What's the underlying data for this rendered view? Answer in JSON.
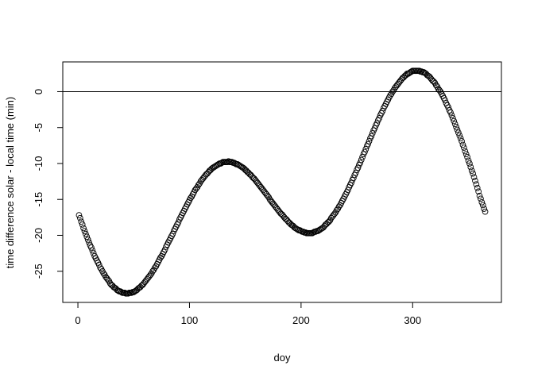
{
  "chart_data": {
    "type": "scatter",
    "x_label": "doy",
    "y_label": "time difference solar - local time (min)",
    "xlim": [
      -13.56,
      379.56
    ],
    "ylim": [
      -29.34,
      4.14
    ],
    "xticks": [
      0,
      100,
      200,
      300
    ],
    "yticks": [
      -25,
      -20,
      -15,
      -10,
      -5,
      0
    ],
    "hlines": [
      0
    ],
    "color": "#000000",
    "x": [
      1,
      2,
      3,
      4,
      5,
      6,
      7,
      8,
      9,
      10,
      11,
      12,
      13,
      14,
      15,
      16,
      17,
      18,
      19,
      20,
      21,
      22,
      23,
      24,
      25,
      26,
      27,
      28,
      29,
      30,
      31,
      32,
      33,
      34,
      35,
      36,
      37,
      38,
      39,
      40,
      41,
      42,
      43,
      44,
      45,
      46,
      47,
      48,
      49,
      50,
      51,
      52,
      53,
      54,
      55,
      56,
      57,
      58,
      59,
      60,
      61,
      62,
      63,
      64,
      65,
      66,
      67,
      68,
      69,
      70,
      71,
      72,
      73,
      74,
      75,
      76,
      77,
      78,
      79,
      80,
      81,
      82,
      83,
      84,
      85,
      86,
      87,
      88,
      89,
      90,
      91,
      92,
      93,
      94,
      95,
      96,
      97,
      98,
      99,
      100,
      101,
      102,
      103,
      104,
      105,
      106,
      107,
      108,
      109,
      110,
      111,
      112,
      113,
      114,
      115,
      116,
      117,
      118,
      119,
      120,
      121,
      122,
      123,
      124,
      125,
      126,
      127,
      128,
      129,
      130,
      131,
      132,
      133,
      134,
      135,
      136,
      137,
      138,
      139,
      140,
      141,
      142,
      143,
      144,
      145,
      146,
      147,
      148,
      149,
      150,
      151,
      152,
      153,
      154,
      155,
      156,
      157,
      158,
      159,
      160,
      161,
      162,
      163,
      164,
      165,
      166,
      167,
      168,
      169,
      170,
      171,
      172,
      173,
      174,
      175,
      176,
      177,
      178,
      179,
      180,
      181,
      182,
      183,
      184,
      185,
      186,
      187,
      188,
      189,
      190,
      191,
      192,
      193,
      194,
      195,
      196,
      197,
      198,
      199,
      200,
      201,
      202,
      203,
      204,
      205,
      206,
      207,
      208,
      209,
      210,
      211,
      212,
      213,
      214,
      215,
      216,
      217,
      218,
      219,
      220,
      221,
      222,
      223,
      224,
      225,
      226,
      227,
      228,
      229,
      230,
      231,
      232,
      233,
      234,
      235,
      236,
      237,
      238,
      239,
      240,
      241,
      242,
      243,
      244,
      245,
      246,
      247,
      248,
      249,
      250,
      251,
      252,
      253,
      254,
      255,
      256,
      257,
      258,
      259,
      260,
      261,
      262,
      263,
      264,
      265,
      266,
      267,
      268,
      269,
      270,
      271,
      272,
      273,
      274,
      275,
      276,
      277,
      278,
      279,
      280,
      281,
      282,
      283,
      284,
      285,
      286,
      287,
      288,
      289,
      290,
      291,
      292,
      293,
      294,
      295,
      296,
      297,
      298,
      299,
      300,
      301,
      302,
      303,
      304,
      305,
      306,
      307,
      308,
      309,
      310,
      311,
      312,
      313,
      314,
      315,
      316,
      317,
      318,
      319,
      320,
      321,
      322,
      323,
      324,
      325,
      326,
      327,
      328,
      329,
      330,
      331,
      332,
      333,
      334,
      335,
      336,
      337,
      338,
      339,
      340,
      341,
      342,
      343,
      344,
      345,
      346,
      347,
      348,
      349,
      350,
      351,
      352,
      353,
      354,
      355,
      356,
      357,
      358,
      359,
      360,
      361,
      362,
      363,
      364,
      365
    ],
    "values": [
      -17.2,
      -17.6,
      -18.1,
      -18.5,
      -19.0,
      -19.4,
      -19.8,
      -20.2,
      -20.6,
      -21.0,
      -21.4,
      -21.7,
      -22.1,
      -22.5,
      -22.9,
      -23.2,
      -23.5,
      -23.8,
      -24.1,
      -24.5,
      -24.7,
      -25.0,
      -25.3,
      -25.5,
      -25.8,
      -26.0,
      -26.2,
      -26.4,
      -26.7,
      -26.9,
      -27.0,
      -27.2,
      -27.3,
      -27.4,
      -27.6,
      -27.7,
      -27.8,
      -27.8,
      -27.9,
      -28.0,
      -28.0,
      -28.0,
      -28.1,
      -28.1,
      -28.1,
      -28.0,
      -28.0,
      -28.0,
      -27.9,
      -27.9,
      -27.8,
      -27.7,
      -27.6,
      -27.4,
      -27.3,
      -27.2,
      -27.0,
      -26.9,
      -26.7,
      -26.5,
      -26.3,
      -26.1,
      -25.9,
      -25.7,
      -25.5,
      -25.3,
      -25.0,
      -24.8,
      -24.5,
      -24.3,
      -24.0,
      -23.7,
      -23.4,
      -23.1,
      -22.9,
      -22.6,
      -22.3,
      -22.0,
      -21.6,
      -21.3,
      -21.0,
      -20.7,
      -20.4,
      -20.1,
      -19.8,
      -19.4,
      -19.1,
      -18.8,
      -18.5,
      -18.2,
      -17.8,
      -17.5,
      -17.2,
      -16.9,
      -16.6,
      -16.3,
      -16.0,
      -15.7,
      -15.4,
      -15.1,
      -14.8,
      -14.6,
      -14.3,
      -14.0,
      -13.7,
      -13.5,
      -13.3,
      -13.0,
      -12.8,
      -12.5,
      -12.3,
      -12.1,
      -11.9,
      -11.7,
      -11.5,
      -11.4,
      -11.2,
      -11.0,
      -10.9,
      -10.7,
      -10.6,
      -10.5,
      -10.4,
      -10.3,
      -10.2,
      -10.1,
      -10.0,
      -10.0,
      -9.9,
      -9.8,
      -9.8,
      -9.8,
      -9.8,
      -9.8,
      -9.7,
      -9.8,
      -9.8,
      -9.8,
      -9.9,
      -9.9,
      -10.0,
      -10.1,
      -10.1,
      -10.2,
      -10.3,
      -10.4,
      -10.5,
      -10.6,
      -10.7,
      -10.9,
      -11.0,
      -11.2,
      -11.3,
      -11.5,
      -11.6,
      -11.8,
      -12.0,
      -12.1,
      -12.3,
      -12.5,
      -12.7,
      -12.9,
      -13.1,
      -13.3,
      -13.5,
      -13.7,
      -13.9,
      -14.1,
      -14.3,
      -14.5,
      -14.7,
      -15.0,
      -15.2,
      -15.4,
      -15.6,
      -15.8,
      -16.0,
      -16.2,
      -16.4,
      -16.6,
      -16.8,
      -17.0,
      -17.1,
      -17.3,
      -17.5,
      -17.7,
      -17.8,
      -18.0,
      -18.2,
      -18.3,
      -18.5,
      -18.6,
      -18.7,
      -18.9,
      -19.0,
      -19.1,
      -19.2,
      -19.3,
      -19.3,
      -19.4,
      -19.5,
      -19.5,
      -19.6,
      -19.6,
      -19.7,
      -19.7,
      -19.7,
      -19.7,
      -19.7,
      -19.7,
      -19.6,
      -19.5,
      -19.5,
      -19.4,
      -19.4,
      -19.3,
      -19.2,
      -19.1,
      -19.0,
      -18.9,
      -18.7,
      -18.5,
      -18.4,
      -18.2,
      -18.1,
      -17.9,
      -17.6,
      -17.4,
      -17.2,
      -17.0,
      -16.8,
      -16.5,
      -16.3,
      -16.0,
      -15.8,
      -15.5,
      -15.2,
      -14.9,
      -14.6,
      -14.3,
      -14.0,
      -13.7,
      -13.3,
      -13.0,
      -12.7,
      -12.3,
      -12.0,
      -11.6,
      -11.3,
      -10.9,
      -10.6,
      -10.2,
      -9.9,
      -9.5,
      -9.1,
      -8.7,
      -8.4,
      -8.0,
      -7.6,
      -7.3,
      -6.9,
      -6.5,
      -6.2,
      -5.8,
      -5.4,
      -5.1,
      -4.7,
      -4.4,
      -4.0,
      -3.7,
      -3.3,
      -3.0,
      -2.7,
      -2.3,
      -2.0,
      -1.7,
      -1.4,
      -1.1,
      -0.8,
      -0.5,
      -0.3,
      0,
      0.2,
      0.5,
      0.7,
      0.9,
      1.1,
      1.3,
      1.5,
      1.7,
      1.9,
      2.0,
      2.2,
      2.3,
      2.5,
      2.5,
      2.6,
      2.7,
      2.8,
      2.9,
      2.9,
      2.9,
      2.9,
      2.9,
      2.9,
      2.9,
      2.8,
      2.8,
      2.7,
      2.7,
      2.6,
      2.5,
      2.3,
      2.2,
      2.1,
      1.9,
      1.7,
      1.5,
      1.4,
      1.2,
      0.9,
      0.7,
      0.4,
      0.2,
      0,
      -0.3,
      -0.6,
      -0.9,
      -1.2,
      -1.6,
      -1.9,
      -2.2,
      -2.6,
      -2.9,
      -3.3,
      -3.7,
      -4.1,
      -4.5,
      -4.9,
      -5.3,
      -5.7,
      -6.1,
      -6.5,
      -6.9,
      -7.4,
      -7.8,
      -8.3,
      -8.7,
      -9.1,
      -9.6,
      -10.0,
      -10.5,
      -11.0,
      -11.4,
      -11.9,
      -12.4,
      -12.9,
      -13.4,
      -13.9,
      -14.5,
      -14.9,
      -15.4,
      -15.8,
      -16.3,
      -16.7
    ]
  }
}
